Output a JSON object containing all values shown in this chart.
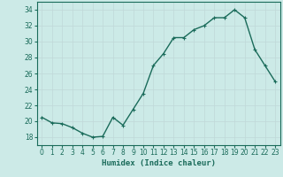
{
  "x": [
    0,
    1,
    2,
    3,
    4,
    5,
    6,
    7,
    8,
    9,
    10,
    11,
    12,
    13,
    14,
    15,
    16,
    17,
    18,
    19,
    20,
    21,
    22,
    23
  ],
  "y": [
    20.5,
    19.8,
    19.7,
    19.2,
    18.5,
    18.0,
    18.1,
    20.5,
    19.5,
    21.5,
    23.5,
    27.0,
    28.5,
    30.5,
    30.5,
    31.5,
    32.0,
    33.0,
    33.0,
    34.0,
    33.0,
    29.0,
    27.0,
    25.0
  ],
  "line_color": "#1a6b5a",
  "marker": "+",
  "markersize": 3.5,
  "linewidth": 1.0,
  "bg_color": "#cceae7",
  "grid_color": "#c0d8d8",
  "xlabel": "Humidex (Indice chaleur)",
  "xlim": [
    -0.5,
    23.5
  ],
  "ylim": [
    17,
    35
  ],
  "yticks": [
    18,
    20,
    22,
    24,
    26,
    28,
    30,
    32,
    34
  ],
  "xtick_labels": [
    "0",
    "1",
    "2",
    "3",
    "4",
    "5",
    "6",
    "7",
    "8",
    "9",
    "10",
    "11",
    "12",
    "13",
    "14",
    "15",
    "16",
    "17",
    "18",
    "19",
    "20",
    "21",
    "22",
    "23"
  ],
  "tick_color": "#1a6b5a",
  "label_color": "#1a6b5a",
  "xlabel_fontsize": 6.5,
  "tick_fontsize": 5.5
}
